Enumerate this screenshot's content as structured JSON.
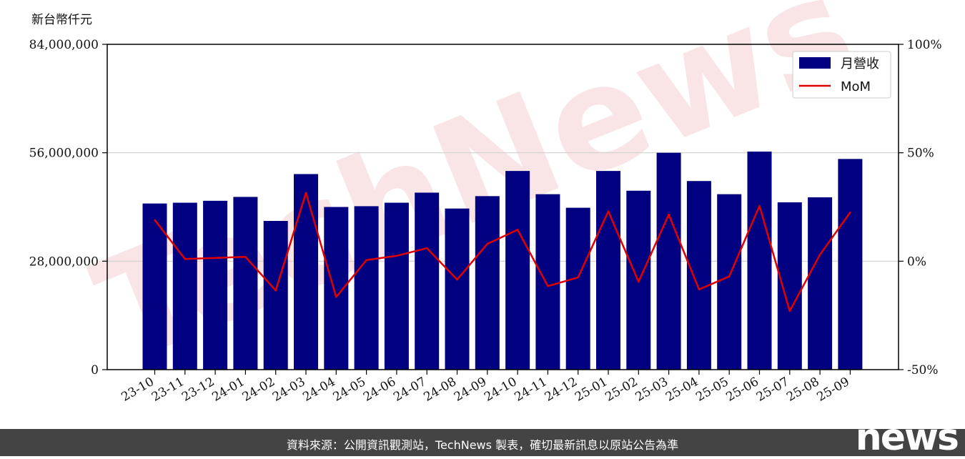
{
  "chart_data": {
    "type": "bar",
    "ylabel": "新台幣仟元",
    "categories": [
      "23-10",
      "23-11",
      "23-12",
      "24-01",
      "24-02",
      "24-03",
      "24-04",
      "24-05",
      "24-06",
      "24-07",
      "24-08",
      "24-09",
      "24-10",
      "24-11",
      "24-12",
      "25-01",
      "25-02",
      "25-03",
      "25-04",
      "25-05",
      "25-06",
      "25-07",
      "25-08",
      "25-09"
    ],
    "series": [
      {
        "name": "月營收",
        "axis": "left",
        "type": "bar",
        "color": "#000080",
        "values": [
          42900000,
          43100000,
          43600000,
          44600000,
          38400000,
          50500000,
          42000000,
          42200000,
          43100000,
          45700000,
          41600000,
          44800000,
          51300000,
          45300000,
          41800000,
          51300000,
          46200000,
          56000000,
          48700000,
          45300000,
          56300000,
          43200000,
          44500000,
          54400000
        ]
      },
      {
        "name": "MoM",
        "axis": "right",
        "type": "line",
        "color": "#e00000",
        "values": [
          19,
          1,
          1.5,
          2,
          -13.5,
          31.5,
          -16.5,
          0.5,
          2.5,
          6,
          -8.5,
          8,
          14.5,
          -11.5,
          -7.5,
          23,
          -9.5,
          21.5,
          -13,
          -7,
          25.5,
          -23,
          3,
          22.5
        ]
      }
    ],
    "y_left": {
      "ylim": [
        0,
        84000000
      ],
      "ticks": [
        "0",
        "28,000,000",
        "56,000,000",
        "84,000,000"
      ],
      "tick_values": [
        0,
        28000000,
        56000000,
        84000000
      ]
    },
    "y_right": {
      "ylim": [
        -50,
        100
      ],
      "ticks": [
        "-50%",
        "0%",
        "50%",
        "100%"
      ],
      "tick_values": [
        -50,
        0,
        50,
        100
      ]
    },
    "grid": "horizontal",
    "legend": "top-right"
  },
  "watermark": "TechNews",
  "footer": {
    "source_text": "資料來源：公開資訊觀測站，TechNews 製表，確切最新訊息以原站公告為準",
    "logo": "news"
  }
}
